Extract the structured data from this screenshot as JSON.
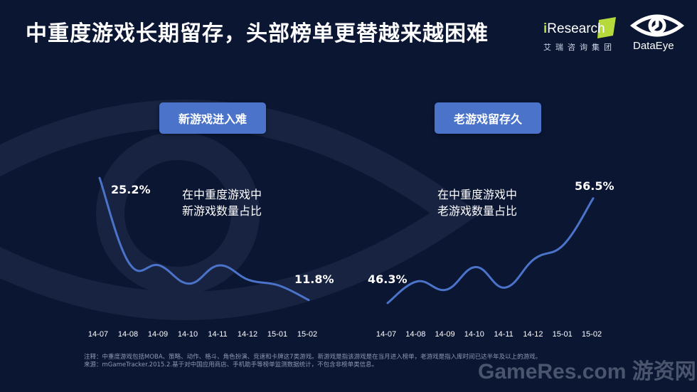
{
  "header": {
    "title": "中重度游戏长期留存，头部榜单更替越来越困难",
    "logo_iresearch_text_i": "i",
    "logo_iresearch_text": "Research",
    "logo_iresearch_sub": "艾瑞咨询集团",
    "logo_dataeye_text": "DataEye"
  },
  "panels": {
    "left": {
      "pill": "新游戏进入难",
      "caption_1": "在中重度游戏中",
      "caption_2": "新游戏数量占比"
    },
    "right": {
      "pill": "老游戏留存久",
      "caption_1": "在中重度游戏中",
      "caption_2": "老游戏数量占比"
    }
  },
  "footnote": {
    "line1": "注释：中重度游戏包括MOBA、策略、动作、格斗、角色扮演、竞速和卡牌这7类游戏。新游戏是指该游戏是在当月进入榜单，老游戏是指入库时间已达半年及以上的游戏。",
    "line2": "来源：mGameTracker.2015.2.基于对中国应用商店、手机助手等榜单监测数据统计，不包含非榜单类信息。"
  },
  "watermark": "GameRes.com 游资网",
  "colors": {
    "background": "#0b1633",
    "line": "#4a73c9",
    "pill": "#4a73c9",
    "accent_green": "#b6d93c"
  },
  "chart_data": [
    {
      "type": "line",
      "title": "新游戏数量占比",
      "categories": [
        "14-07",
        "14-08",
        "14-09",
        "14-10",
        "14-11",
        "14-12",
        "15-01",
        "15-02"
      ],
      "series": [
        {
          "values": [
            25.2,
            15.8,
            15.6,
            13.6,
            15.6,
            14.0,
            13.4,
            11.8
          ]
        }
      ],
      "labels": [
        {
          "index": 0,
          "text": "25.2%"
        },
        {
          "index": 7,
          "text": "11.8%"
        }
      ],
      "grid": false
    },
    {
      "type": "line",
      "title": "老游戏数量占比",
      "categories": [
        "14-07",
        "14-08",
        "14-09",
        "14-10",
        "14-11",
        "14-12",
        "15-01",
        "15-02"
      ],
      "series": [
        {
          "values": [
            46.3,
            48.4,
            47.6,
            49.8,
            47.8,
            50.6,
            52.0,
            56.5
          ]
        }
      ],
      "labels": [
        {
          "index": 0,
          "text": "46.3%"
        },
        {
          "index": 7,
          "text": "56.5%"
        }
      ],
      "grid": false
    }
  ]
}
